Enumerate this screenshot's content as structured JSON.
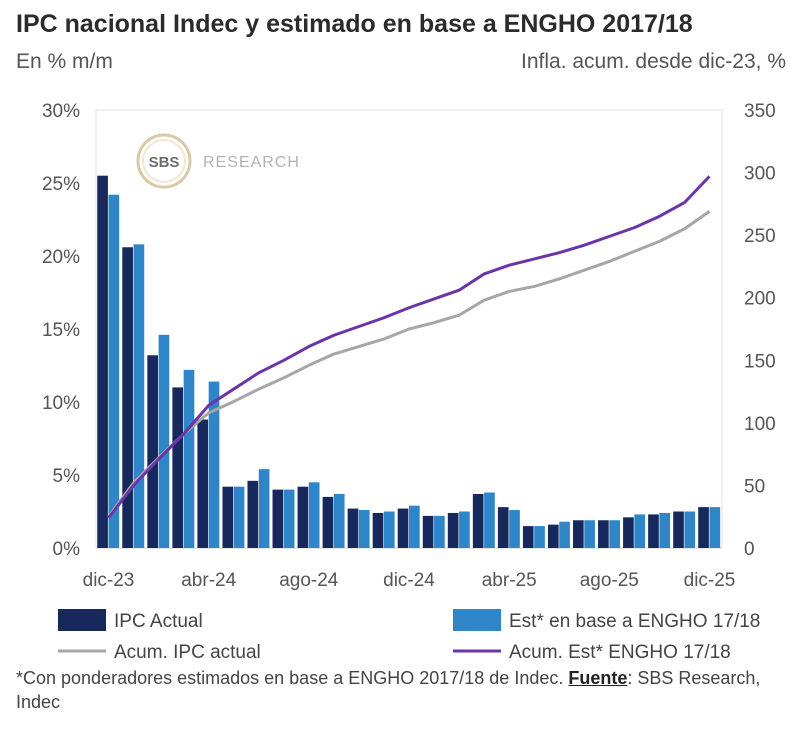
{
  "chart_data": {
    "type": "bar+line",
    "title": "IPC nacional Indec y estimado en base a ENGHO 2017/18",
    "left_axis_label": "En % m/m",
    "right_axis_label": "Infla. acum. desde dic-23, %",
    "left_ylim": [
      0,
      30
    ],
    "left_ticks": [
      "0%",
      "5%",
      "10%",
      "15%",
      "20%",
      "25%",
      "30%"
    ],
    "right_ylim": [
      0,
      350
    ],
    "right_ticks": [
      "0",
      "50",
      "100",
      "150",
      "200",
      "250",
      "300",
      "350"
    ],
    "x_tick_labels": [
      "dic-23",
      "abr-24",
      "ago-24",
      "dic-24",
      "abr-25",
      "ago-25",
      "dic-25"
    ],
    "categories": [
      "dic-23",
      "ene-24",
      "feb-24",
      "mar-24",
      "abr-24",
      "may-24",
      "jun-24",
      "jul-24",
      "ago-24",
      "sep-24",
      "oct-24",
      "nov-24",
      "dic-24",
      "ene-25",
      "feb-25",
      "mar-25",
      "abr-25",
      "may-25",
      "jun-25",
      "jul-25",
      "ago-25",
      "sep-25",
      "oct-25",
      "nov-25",
      "dic-25"
    ],
    "series": [
      {
        "name": "IPC Actual",
        "kind": "bar",
        "axis": "left",
        "color": "#17285c",
        "values": [
          25.5,
          20.6,
          13.2,
          11.0,
          8.8,
          4.2,
          4.6,
          4.0,
          4.2,
          3.5,
          2.7,
          2.4,
          2.7,
          2.2,
          2.4,
          3.7,
          2.8,
          1.5,
          1.6,
          1.9,
          1.9,
          2.1,
          2.3,
          2.5,
          2.8
        ]
      },
      {
        "name": "Est* en base a ENGHO 17/18",
        "kind": "bar",
        "axis": "left",
        "color": "#2e86c9",
        "values": [
          24.2,
          20.8,
          14.6,
          12.2,
          11.4,
          4.2,
          5.4,
          4.0,
          4.5,
          3.7,
          2.6,
          2.5,
          2.9,
          2.2,
          2.5,
          3.8,
          2.6,
          1.5,
          1.8,
          1.9,
          1.9,
          2.3,
          2.4,
          2.5,
          2.8
        ]
      },
      {
        "name": "Acum. IPC actual",
        "kind": "line",
        "axis": "right",
        "color": "#a6a6a6",
        "values": [
          25,
          52,
          72,
          91,
          108,
          117,
          127,
          136,
          146,
          155,
          161,
          167,
          175,
          180,
          186,
          198,
          205,
          209,
          215,
          222,
          229,
          237,
          245,
          255,
          269
        ]
      },
      {
        "name": "Acum. Est* ENGHO 17/18",
        "kind": "line",
        "axis": "right",
        "color": "#6b35a8",
        "values": [
          24,
          50,
          71,
          91,
          114,
          127,
          140,
          150,
          161,
          170,
          177,
          184,
          192,
          199,
          206,
          219,
          226,
          231,
          236,
          242,
          249,
          256,
          265,
          276,
          297
        ]
      }
    ],
    "grid": false,
    "legend_placement": "bottom"
  },
  "logo": {
    "mark": "SBS",
    "text": "RESEARCH"
  },
  "footnote": {
    "before": "*Con ponderadores estimados en base a ENGHO 2017/18 de Indec. ",
    "source_label": "Fuente",
    "after": ": SBS Research, Indec"
  }
}
